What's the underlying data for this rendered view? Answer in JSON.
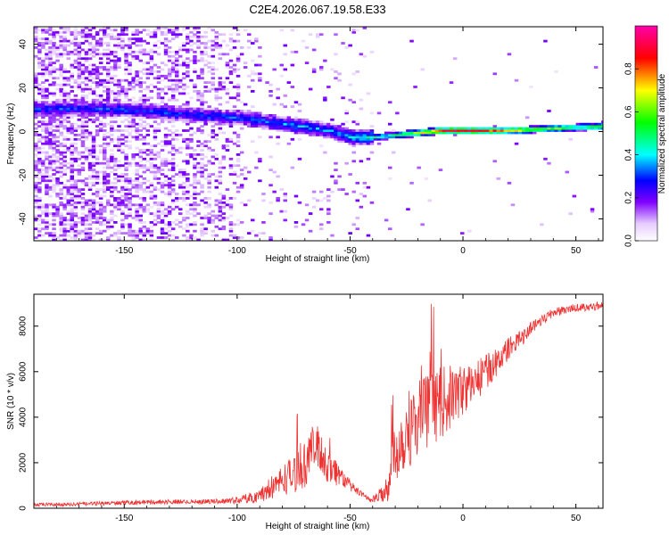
{
  "chart_data": [
    {
      "type": "heatmap",
      "title": "C2E4.2026.067.19.58.E33",
      "xlabel": "Height of straight line (km)",
      "ylabel": "Frequency (Hz)",
      "xlim": [
        -190,
        62
      ],
      "ylim": [
        -50,
        48
      ],
      "xticks": [
        -150,
        -100,
        -50,
        0,
        50
      ],
      "xtick_labels": [
        "-150",
        "-100",
        "-50",
        "0",
        "50"
      ],
      "yticks": [
        -40,
        -20,
        0,
        20,
        40
      ],
      "ytick_labels": [
        "-40",
        "-20",
        "0",
        "20",
        "40"
      ],
      "colorbar": {
        "label": "Normalized spectral amplitude",
        "range": [
          0,
          1
        ],
        "ticks": [
          0.0,
          0.2,
          0.4,
          0.6,
          0.8
        ],
        "tick_labels": [
          "0.0",
          "0.2",
          "0.4",
          "0.6",
          "0.8"
        ],
        "colormap": [
          "#ffffff",
          "#e6ccff",
          "#8000ff",
          "#0000ff",
          "#00ffff",
          "#00ff00",
          "#ffff00",
          "#ff0000",
          "#ff00aa"
        ]
      },
      "ridge": {
        "x": [
          -160,
          -140,
          -120,
          -100,
          -80,
          -60,
          -50,
          -40,
          -30,
          -20,
          -10,
          0,
          20,
          40,
          62
        ],
        "freq": [
          10,
          9,
          7,
          6,
          3,
          0,
          -3,
          -3,
          -2,
          -1,
          0,
          0,
          0,
          1,
          2
        ],
        "amplitude": [
          0.3,
          0.3,
          0.3,
          0.3,
          0.35,
          0.35,
          0.4,
          0.45,
          0.55,
          0.7,
          0.85,
          0.9,
          0.75,
          0.6,
          0.55
        ]
      }
    },
    {
      "type": "line",
      "xlabel": "Height of straight line (km)",
      "ylabel": "SNR (10 * v/v)",
      "xlim": [
        -190,
        62
      ],
      "ylim": [
        0,
        9400
      ],
      "xticks": [
        -150,
        -100,
        -50,
        0,
        50
      ],
      "xtick_labels": [
        "-150",
        "-100",
        "-50",
        "0",
        "50"
      ],
      "yticks": [
        0,
        2000,
        4000,
        6000,
        8000
      ],
      "ytick_labels": [
        "0",
        "2000",
        "4000",
        "6000",
        "8000"
      ],
      "series": [
        {
          "name": "SNR",
          "color": "#ee3333",
          "x": [
            -190,
            -170,
            -150,
            -130,
            -110,
            -100,
            -90,
            -85,
            -80,
            -75,
            -70,
            -67,
            -65,
            -62,
            -60,
            -57,
            -55,
            -50,
            -45,
            -40,
            -35,
            -33,
            -30,
            -25,
            -20,
            -15,
            -10,
            -5,
            0,
            5,
            10,
            15,
            20,
            25,
            30,
            35,
            40,
            45,
            50,
            55,
            62
          ],
          "y": [
            150,
            180,
            250,
            280,
            300,
            350,
            550,
            900,
            1250,
            1500,
            1900,
            2600,
            2700,
            2300,
            1800,
            1700,
            1500,
            1000,
            600,
            350,
            700,
            1200,
            2500,
            3400,
            4000,
            4300,
            4600,
            4900,
            5200,
            5500,
            6000,
            6400,
            7000,
            7400,
            7900,
            8300,
            8600,
            8700,
            8800,
            8850,
            8900
          ],
          "noise": [
            80,
            80,
            90,
            100,
            100,
            150,
            300,
            500,
            700,
            850,
            1000,
            1000,
            1000,
            900,
            800,
            700,
            500,
            250,
            150,
            150,
            400,
            900,
            1400,
            1700,
            1900,
            1600,
            1600,
            1400,
            1100,
            900,
            800,
            600,
            500,
            400,
            300,
            250,
            200,
            200,
            180,
            180,
            180
          ]
        }
      ]
    }
  ]
}
